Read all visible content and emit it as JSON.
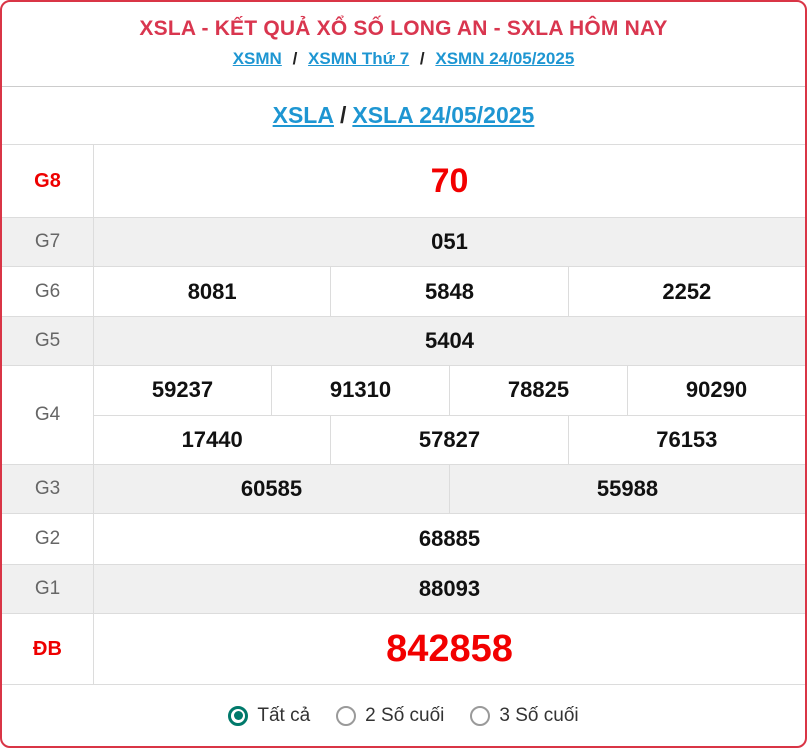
{
  "header": {
    "title": "XSLA - KẾT QUẢ XỔ SỐ LONG AN - SXLA HÔM NAY",
    "breadcrumb": {
      "separator": "/",
      "items": [
        {
          "label": "XSMN"
        },
        {
          "label": "XSMN Thứ 7"
        },
        {
          "label": "XSMN 24/05/2025"
        }
      ]
    },
    "sub_breadcrumb": {
      "separator": "/",
      "items": [
        {
          "label": "XSLA"
        },
        {
          "label": "XSLA 24/05/2025"
        }
      ]
    }
  },
  "results": {
    "g8": {
      "label": "G8",
      "value": "70"
    },
    "g7": {
      "label": "G7",
      "value": "051"
    },
    "g6": {
      "label": "G6",
      "values": [
        "8081",
        "5848",
        "2252"
      ]
    },
    "g5": {
      "label": "G5",
      "value": "5404"
    },
    "g4": {
      "label": "G4",
      "row1": [
        "59237",
        "91310",
        "78825",
        "90290"
      ],
      "row2": [
        "17440",
        "57827",
        "76153"
      ]
    },
    "g3": {
      "label": "G3",
      "values": [
        "60585",
        "55988"
      ]
    },
    "g2": {
      "label": "G2",
      "value": "68885"
    },
    "g1": {
      "label": "G1",
      "value": "88093"
    },
    "db": {
      "label": "ĐB",
      "value": "842858"
    }
  },
  "filter": {
    "options": [
      {
        "label": "Tất cả",
        "selected": true
      },
      {
        "label": "2 Số cuối",
        "selected": false
      },
      {
        "label": "3 Số cuối",
        "selected": false
      }
    ]
  },
  "colors": {
    "accent_red": "#d93546",
    "prize_red": "#f20000",
    "link_blue": "#1e96d2",
    "radio_teal": "#00796b",
    "alt_row_gray": "#f0f0f0"
  }
}
